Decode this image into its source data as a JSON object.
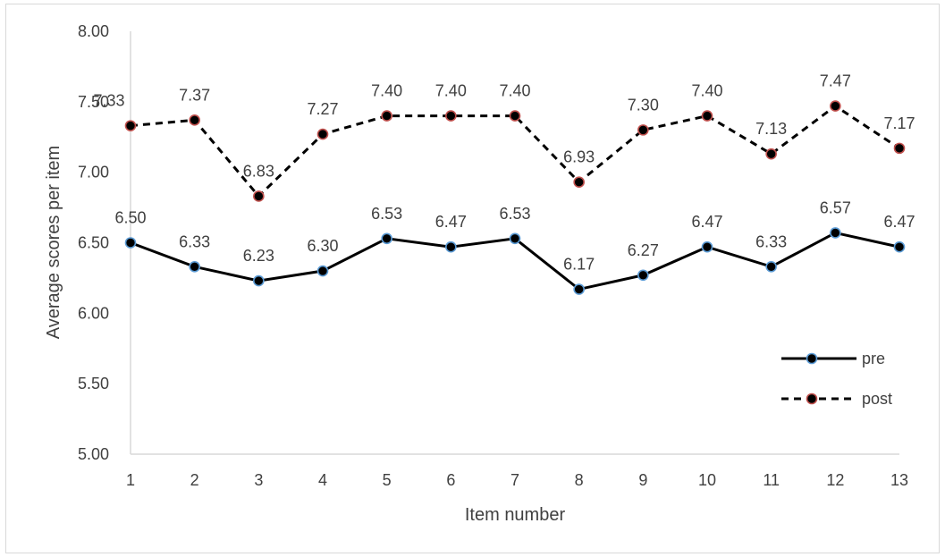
{
  "chart_data": {
    "type": "line",
    "xlabel": "Item number",
    "ylabel": "Average scores per item",
    "categories": [
      "1",
      "2",
      "3",
      "4",
      "5",
      "6",
      "7",
      "8",
      "9",
      "10",
      "11",
      "12",
      "13"
    ],
    "ylim": [
      5.0,
      8.0
    ],
    "yticks": [
      "5.00",
      "5.50",
      "6.00",
      "6.50",
      "7.00",
      "7.50",
      "8.00"
    ],
    "grid": false,
    "legend_position": "bottom-right",
    "series": [
      {
        "name": "pre",
        "style": "solid",
        "marker_fill": "#000000",
        "marker_edge": "#5b9bd5",
        "values": [
          6.5,
          6.33,
          6.23,
          6.3,
          6.53,
          6.47,
          6.53,
          6.17,
          6.27,
          6.47,
          6.33,
          6.57,
          6.47
        ],
        "labels": [
          "6.50",
          "6.33",
          "6.23",
          "6.30",
          "6.53",
          "6.47",
          "6.53",
          "6.17",
          "6.27",
          "6.47",
          "6.33",
          "6.57",
          "6.47"
        ]
      },
      {
        "name": "post",
        "style": "dashed",
        "marker_fill": "#000000",
        "marker_edge": "#c0504d",
        "values": [
          7.33,
          7.37,
          6.83,
          7.27,
          7.4,
          7.4,
          7.4,
          6.93,
          7.3,
          7.4,
          7.13,
          7.47,
          7.17
        ],
        "labels": [
          "7.33",
          "7.37",
          "6.83",
          "7.27",
          "7.40",
          "7.40",
          "7.40",
          "6.93",
          "7.30",
          "7.40",
          "7.13",
          "7.47",
          "7.17"
        ]
      }
    ]
  }
}
